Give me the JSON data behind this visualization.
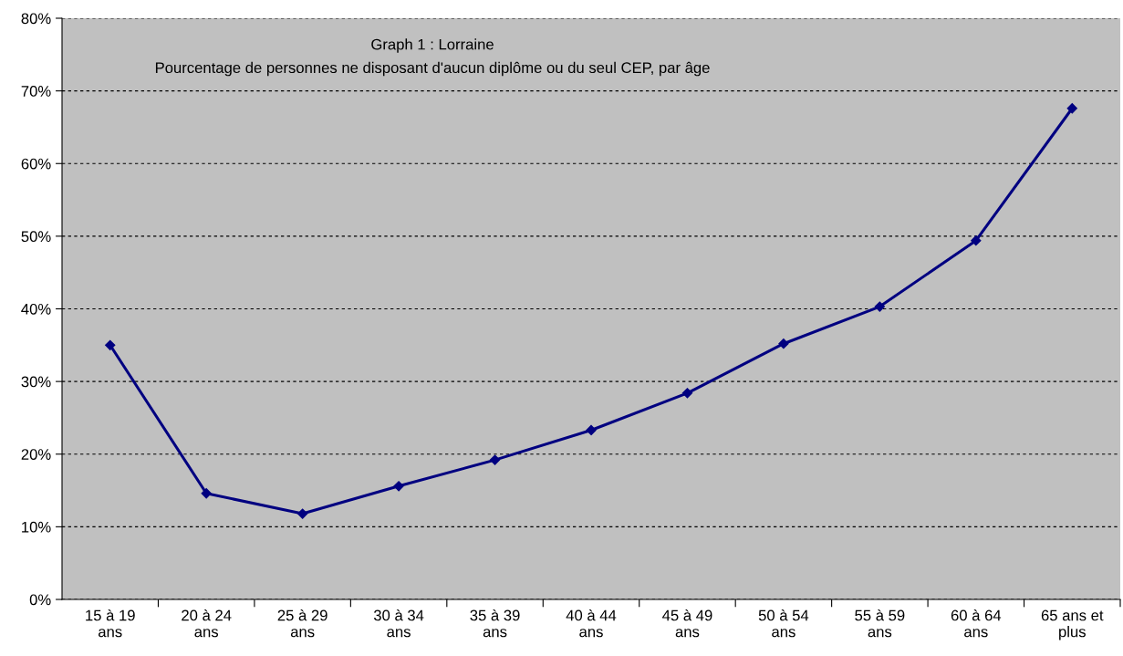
{
  "chart_data": {
    "type": "line",
    "title": "Graph 1 : Lorraine",
    "subtitle": "Pourcentage de personnes ne disposant d'aucun diplôme ou du seul CEP, par âge",
    "categories": [
      "15 à 19 ans",
      "20 à 24 ans",
      "25 à 29 ans",
      "30 à 34 ans",
      "35 à 39 ans",
      "40 à 44 ans",
      "45 à 49 ans",
      "50 à 54 ans",
      "55 à 59 ans",
      "60 à 64 ans",
      "65 ans et plus"
    ],
    "series": [
      {
        "color": "#000080",
        "values": [
          35,
          14.6,
          11.8,
          15.6,
          19.2,
          23.3,
          28.4,
          35.2,
          40.3,
          49.4,
          67.6
        ]
      }
    ],
    "ylim": [
      0,
      80
    ],
    "yticks": [
      {
        "value": 0,
        "label": "0%"
      },
      {
        "value": 10,
        "label": "10%"
      },
      {
        "value": 20,
        "label": "20%"
      },
      {
        "value": 30,
        "label": "30%"
      },
      {
        "value": 40,
        "label": "40%"
      },
      {
        "value": 50,
        "label": "50%"
      },
      {
        "value": 60,
        "label": "60%"
      },
      {
        "value": 70,
        "label": "70%"
      },
      {
        "value": 80,
        "label": "80%"
      }
    ],
    "grid": "y",
    "marker": "diamond",
    "line_style": "solid",
    "legend": false
  }
}
